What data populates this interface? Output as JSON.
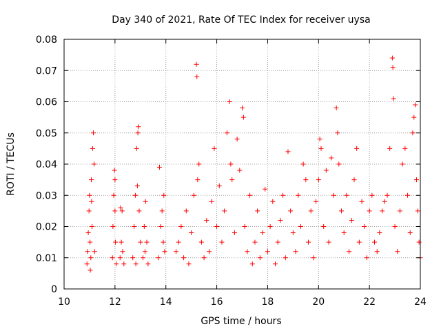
{
  "chart_data": {
    "type": "scatter",
    "title": "Day 340 of 2021, Rate Of TEC Index for receiver uysa",
    "xlabel": "GPS time / hours",
    "ylabel": "ROTI / TECUs",
    "xlim": [
      10,
      24
    ],
    "ylim": [
      0,
      0.08
    ],
    "xticks": [
      "10",
      "12",
      "14",
      "16",
      "18",
      "20",
      "22",
      "24"
    ],
    "yticks": [
      "0",
      "0.01",
      "0.02",
      "0.03",
      "0.04",
      "0.05",
      "0.06",
      "0.07",
      "0.08"
    ],
    "grid": true,
    "marker": "plus",
    "colors": {
      "series": "#ff0000",
      "grid": "#a0a0a0",
      "axes": "#000000"
    },
    "series": [
      {
        "points": [
          [
            10.9,
            0.008
          ],
          [
            10.92,
            0.012
          ],
          [
            10.95,
            0.018
          ],
          [
            10.98,
            0.025
          ],
          [
            11.0,
            0.03
          ],
          [
            11.02,
            0.015
          ],
          [
            11.05,
            0.01
          ],
          [
            11.07,
            0.035
          ],
          [
            11.1,
            0.02
          ],
          [
            11.12,
            0.045
          ],
          [
            11.15,
            0.05
          ],
          [
            11.18,
            0.04
          ],
          [
            11.2,
            0.012
          ],
          [
            11.03,
            0.006
          ],
          [
            11.08,
            0.028
          ],
          [
            11.9,
            0.01
          ],
          [
            11.92,
            0.02
          ],
          [
            11.95,
            0.03
          ],
          [
            11.98,
            0.038
          ],
          [
            12.0,
            0.025
          ],
          [
            12.02,
            0.015
          ],
          [
            12.05,
            0.008
          ],
          [
            12.0,
            0.035
          ],
          [
            12.2,
            0.01
          ],
          [
            12.25,
            0.015
          ],
          [
            12.3,
            0.012
          ],
          [
            12.35,
            0.008
          ],
          [
            12.22,
            0.026
          ],
          [
            12.28,
            0.025
          ],
          [
            12.7,
            0.01
          ],
          [
            12.75,
            0.02
          ],
          [
            12.8,
            0.03
          ],
          [
            12.85,
            0.045
          ],
          [
            12.9,
            0.05
          ],
          [
            12.92,
            0.052
          ],
          [
            12.95,
            0.025
          ],
          [
            13.0,
            0.015
          ],
          [
            12.82,
            0.008
          ],
          [
            12.88,
            0.033
          ],
          [
            13.1,
            0.01
          ],
          [
            13.15,
            0.02
          ],
          [
            13.2,
            0.028
          ],
          [
            13.25,
            0.015
          ],
          [
            13.3,
            0.008
          ],
          [
            13.18,
            0.012
          ],
          [
            13.7,
            0.01
          ],
          [
            13.75,
            0.039
          ],
          [
            13.8,
            0.02
          ],
          [
            13.85,
            0.025
          ],
          [
            13.9,
            0.015
          ],
          [
            13.95,
            0.012
          ],
          [
            13.92,
            0.03
          ],
          [
            14.4,
            0.012
          ],
          [
            14.5,
            0.015
          ],
          [
            14.6,
            0.02
          ],
          [
            14.7,
            0.01
          ],
          [
            14.8,
            0.025
          ],
          [
            14.9,
            0.008
          ],
          [
            15.0,
            0.018
          ],
          [
            15.1,
            0.03
          ],
          [
            15.2,
            0.072
          ],
          [
            15.22,
            0.068
          ],
          [
            15.25,
            0.035
          ],
          [
            15.3,
            0.04
          ],
          [
            15.4,
            0.015
          ],
          [
            15.5,
            0.01
          ],
          [
            15.6,
            0.022
          ],
          [
            15.7,
            0.012
          ],
          [
            15.8,
            0.028
          ],
          [
            15.9,
            0.045
          ],
          [
            16.0,
            0.02
          ],
          [
            16.1,
            0.033
          ],
          [
            16.2,
            0.015
          ],
          [
            16.3,
            0.025
          ],
          [
            16.4,
            0.05
          ],
          [
            16.5,
            0.06
          ],
          [
            16.55,
            0.04
          ],
          [
            16.6,
            0.035
          ],
          [
            16.7,
            0.018
          ],
          [
            16.8,
            0.048
          ],
          [
            16.9,
            0.038
          ],
          [
            17.0,
            0.058
          ],
          [
            17.05,
            0.055
          ],
          [
            17.1,
            0.02
          ],
          [
            17.2,
            0.012
          ],
          [
            17.3,
            0.03
          ],
          [
            17.4,
            0.008
          ],
          [
            17.5,
            0.015
          ],
          [
            17.6,
            0.025
          ],
          [
            17.7,
            0.01
          ],
          [
            17.8,
            0.018
          ],
          [
            17.9,
            0.032
          ],
          [
            18.0,
            0.012
          ],
          [
            18.1,
            0.02
          ],
          [
            18.2,
            0.028
          ],
          [
            18.3,
            0.008
          ],
          [
            18.4,
            0.015
          ],
          [
            18.5,
            0.022
          ],
          [
            18.6,
            0.03
          ],
          [
            18.7,
            0.01
          ],
          [
            18.8,
            0.044
          ],
          [
            18.9,
            0.025
          ],
          [
            19.0,
            0.018
          ],
          [
            19.1,
            0.012
          ],
          [
            19.2,
            0.03
          ],
          [
            19.3,
            0.02
          ],
          [
            19.4,
            0.04
          ],
          [
            19.5,
            0.035
          ],
          [
            19.6,
            0.015
          ],
          [
            19.7,
            0.025
          ],
          [
            19.8,
            0.01
          ],
          [
            19.9,
            0.028
          ],
          [
            20.0,
            0.035
          ],
          [
            20.05,
            0.048
          ],
          [
            20.1,
            0.045
          ],
          [
            20.2,
            0.02
          ],
          [
            20.3,
            0.038
          ],
          [
            20.4,
            0.015
          ],
          [
            20.5,
            0.042
          ],
          [
            20.6,
            0.03
          ],
          [
            20.7,
            0.058
          ],
          [
            20.75,
            0.05
          ],
          [
            20.8,
            0.04
          ],
          [
            20.9,
            0.025
          ],
          [
            21.0,
            0.018
          ],
          [
            21.1,
            0.03
          ],
          [
            21.2,
            0.012
          ],
          [
            21.3,
            0.022
          ],
          [
            21.4,
            0.035
          ],
          [
            21.5,
            0.045
          ],
          [
            21.6,
            0.015
          ],
          [
            21.7,
            0.028
          ],
          [
            21.8,
            0.02
          ],
          [
            21.9,
            0.01
          ],
          [
            22.0,
            0.025
          ],
          [
            22.1,
            0.03
          ],
          [
            22.2,
            0.015
          ],
          [
            22.3,
            0.012
          ],
          [
            22.4,
            0.018
          ],
          [
            22.5,
            0.025
          ],
          [
            22.6,
            0.028
          ],
          [
            22.7,
            0.03
          ],
          [
            22.8,
            0.045
          ],
          [
            22.9,
            0.074
          ],
          [
            22.92,
            0.071
          ],
          [
            22.95,
            0.061
          ],
          [
            23.0,
            0.02
          ],
          [
            23.1,
            0.012
          ],
          [
            23.2,
            0.025
          ],
          [
            23.3,
            0.04
          ],
          [
            23.4,
            0.045
          ],
          [
            23.5,
            0.03
          ],
          [
            23.6,
            0.018
          ],
          [
            23.7,
            0.05
          ],
          [
            23.75,
            0.055
          ],
          [
            23.8,
            0.059
          ],
          [
            23.85,
            0.035
          ],
          [
            23.9,
            0.025
          ],
          [
            23.95,
            0.015
          ],
          [
            24.0,
            0.01
          ]
        ]
      }
    ]
  }
}
